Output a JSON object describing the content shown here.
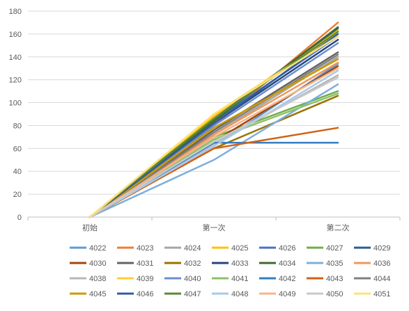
{
  "chart_data": {
    "type": "line",
    "title": "",
    "xlabel": "",
    "ylabel": "",
    "categories": [
      "初始",
      "第一次",
      "第二次"
    ],
    "ylim": [
      0,
      180
    ],
    "yticks": [
      0,
      20,
      40,
      60,
      80,
      100,
      120,
      140,
      160,
      180
    ],
    "grid": "horizontal",
    "legend_position": "bottom",
    "series": [
      {
        "name": "4022",
        "color": "#5B9BD5",
        "values": [
          0,
          62,
          134
        ]
      },
      {
        "name": "4023",
        "color": "#ED7D31",
        "values": [
          0,
          80,
          170
        ]
      },
      {
        "name": "4024",
        "color": "#A5A5A5",
        "values": [
          0,
          72,
          140
        ]
      },
      {
        "name": "4025",
        "color": "#FFC000",
        "values": [
          0,
          88,
          163
        ]
      },
      {
        "name": "4026",
        "color": "#4472C4",
        "values": [
          0,
          84,
          158
        ]
      },
      {
        "name": "4027",
        "color": "#70AD47",
        "values": [
          0,
          70,
          110
        ]
      },
      {
        "name": "4029",
        "color": "#255E91",
        "values": [
          0,
          86,
          165
        ]
      },
      {
        "name": "4030",
        "color": "#9E480E",
        "values": [
          0,
          66,
          132
        ]
      },
      {
        "name": "4031",
        "color": "#636363",
        "values": [
          0,
          76,
          144
        ]
      },
      {
        "name": "4032",
        "color": "#997300",
        "values": [
          0,
          60,
          106
        ]
      },
      {
        "name": "4033",
        "color": "#264478",
        "values": [
          0,
          82,
          155
        ]
      },
      {
        "name": "4034",
        "color": "#43682B",
        "values": [
          0,
          84,
          166
        ]
      },
      {
        "name": "4035",
        "color": "#7CAFDD",
        "values": [
          0,
          50,
          116
        ]
      },
      {
        "name": "4036",
        "color": "#F1975A",
        "values": [
          0,
          72,
          135
        ]
      },
      {
        "name": "4038",
        "color": "#B7B7B7",
        "values": [
          0,
          64,
          124
        ]
      },
      {
        "name": "4039",
        "color": "#FFCD33",
        "values": [
          0,
          90,
          160
        ]
      },
      {
        "name": "4040",
        "color": "#698ED0",
        "values": [
          0,
          80,
          152
        ]
      },
      {
        "name": "4041",
        "color": "#8CC168",
        "values": [
          0,
          68,
          108
        ]
      },
      {
        "name": "4042",
        "color": "#327DC2",
        "values": [
          0,
          65,
          65
        ]
      },
      {
        "name": "4043",
        "color": "#D26012",
        "values": [
          0,
          60,
          78
        ]
      },
      {
        "name": "4044",
        "color": "#7F7F7F",
        "values": [
          0,
          74,
          142
        ]
      },
      {
        "name": "4045",
        "color": "#CC9A00",
        "values": [
          0,
          78,
          138
        ]
      },
      {
        "name": "4046",
        "color": "#335AA1",
        "values": [
          0,
          82,
          160
        ]
      },
      {
        "name": "4047",
        "color": "#5A8A39",
        "values": [
          0,
          86,
          162
        ]
      },
      {
        "name": "4048",
        "color": "#A9C9EA",
        "values": [
          0,
          62,
          128
        ]
      },
      {
        "name": "4049",
        "color": "#F6B48A",
        "values": [
          0,
          70,
          130
        ]
      },
      {
        "name": "4050",
        "color": "#C9C9C9",
        "values": [
          0,
          66,
          122
        ]
      },
      {
        "name": "4051",
        "color": "#FFE07A",
        "values": [
          0,
          90,
          158
        ]
      }
    ]
  }
}
